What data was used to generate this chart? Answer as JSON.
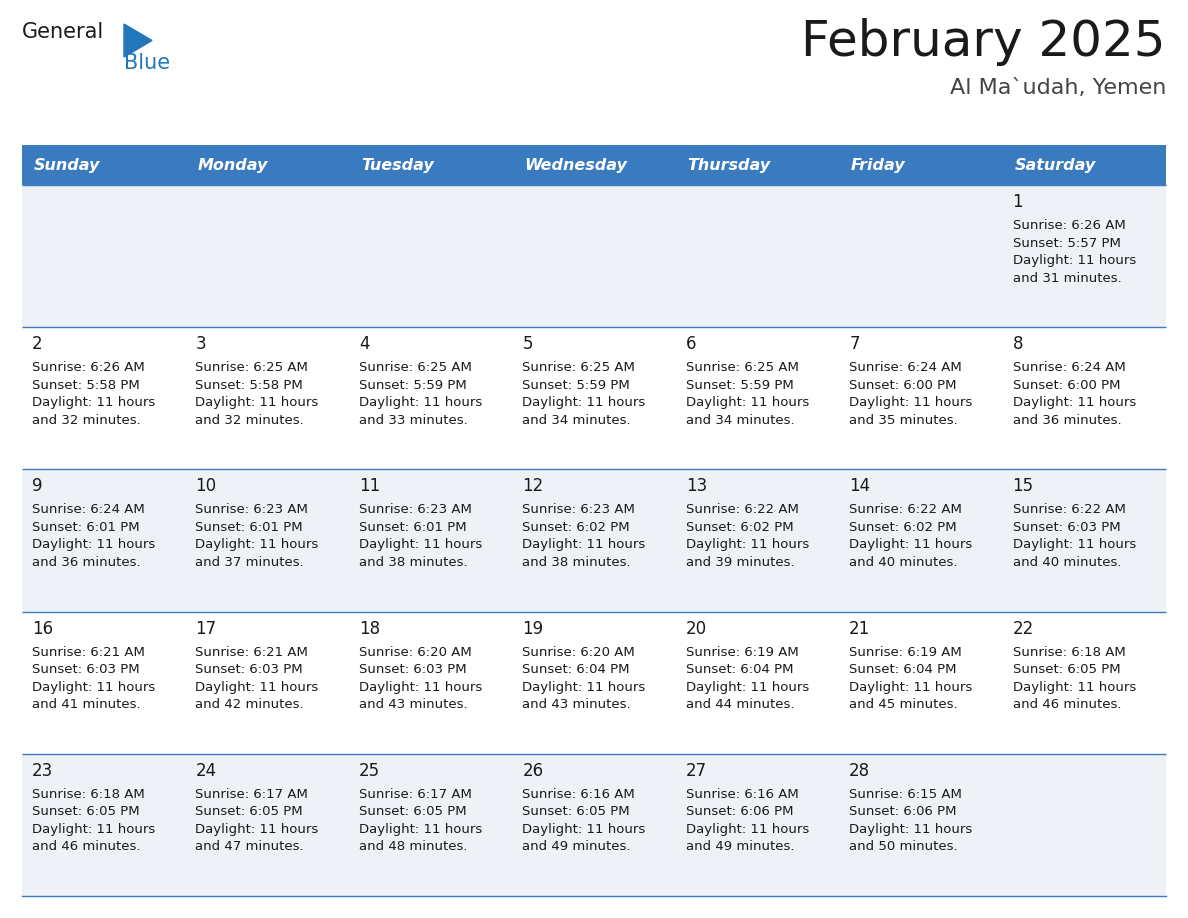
{
  "title": "February 2025",
  "subtitle": "Al Ma`udah, Yemen",
  "header_color": "#3a7bbf",
  "header_text_color": "#ffffff",
  "cell_bg_even": "#eef2f7",
  "cell_bg_odd": "#ffffff",
  "days_of_week": [
    "Sunday",
    "Monday",
    "Tuesday",
    "Wednesday",
    "Thursday",
    "Friday",
    "Saturday"
  ],
  "weeks": [
    [
      {
        "day": null,
        "sunrise": null,
        "sunset": null,
        "daylight": null
      },
      {
        "day": null,
        "sunrise": null,
        "sunset": null,
        "daylight": null
      },
      {
        "day": null,
        "sunrise": null,
        "sunset": null,
        "daylight": null
      },
      {
        "day": null,
        "sunrise": null,
        "sunset": null,
        "daylight": null
      },
      {
        "day": null,
        "sunrise": null,
        "sunset": null,
        "daylight": null
      },
      {
        "day": null,
        "sunrise": null,
        "sunset": null,
        "daylight": null
      },
      {
        "day": 1,
        "sunrise": "6:26 AM",
        "sunset": "5:57 PM",
        "daylight": "11 hours\nand 31 minutes."
      }
    ],
    [
      {
        "day": 2,
        "sunrise": "6:26 AM",
        "sunset": "5:58 PM",
        "daylight": "11 hours\nand 32 minutes."
      },
      {
        "day": 3,
        "sunrise": "6:25 AM",
        "sunset": "5:58 PM",
        "daylight": "11 hours\nand 32 minutes."
      },
      {
        "day": 4,
        "sunrise": "6:25 AM",
        "sunset": "5:59 PM",
        "daylight": "11 hours\nand 33 minutes."
      },
      {
        "day": 5,
        "sunrise": "6:25 AM",
        "sunset": "5:59 PM",
        "daylight": "11 hours\nand 34 minutes."
      },
      {
        "day": 6,
        "sunrise": "6:25 AM",
        "sunset": "5:59 PM",
        "daylight": "11 hours\nand 34 minutes."
      },
      {
        "day": 7,
        "sunrise": "6:24 AM",
        "sunset": "6:00 PM",
        "daylight": "11 hours\nand 35 minutes."
      },
      {
        "day": 8,
        "sunrise": "6:24 AM",
        "sunset": "6:00 PM",
        "daylight": "11 hours\nand 36 minutes."
      }
    ],
    [
      {
        "day": 9,
        "sunrise": "6:24 AM",
        "sunset": "6:01 PM",
        "daylight": "11 hours\nand 36 minutes."
      },
      {
        "day": 10,
        "sunrise": "6:23 AM",
        "sunset": "6:01 PM",
        "daylight": "11 hours\nand 37 minutes."
      },
      {
        "day": 11,
        "sunrise": "6:23 AM",
        "sunset": "6:01 PM",
        "daylight": "11 hours\nand 38 minutes."
      },
      {
        "day": 12,
        "sunrise": "6:23 AM",
        "sunset": "6:02 PM",
        "daylight": "11 hours\nand 38 minutes."
      },
      {
        "day": 13,
        "sunrise": "6:22 AM",
        "sunset": "6:02 PM",
        "daylight": "11 hours\nand 39 minutes."
      },
      {
        "day": 14,
        "sunrise": "6:22 AM",
        "sunset": "6:02 PM",
        "daylight": "11 hours\nand 40 minutes."
      },
      {
        "day": 15,
        "sunrise": "6:22 AM",
        "sunset": "6:03 PM",
        "daylight": "11 hours\nand 40 minutes."
      }
    ],
    [
      {
        "day": 16,
        "sunrise": "6:21 AM",
        "sunset": "6:03 PM",
        "daylight": "11 hours\nand 41 minutes."
      },
      {
        "day": 17,
        "sunrise": "6:21 AM",
        "sunset": "6:03 PM",
        "daylight": "11 hours\nand 42 minutes."
      },
      {
        "day": 18,
        "sunrise": "6:20 AM",
        "sunset": "6:03 PM",
        "daylight": "11 hours\nand 43 minutes."
      },
      {
        "day": 19,
        "sunrise": "6:20 AM",
        "sunset": "6:04 PM",
        "daylight": "11 hours\nand 43 minutes."
      },
      {
        "day": 20,
        "sunrise": "6:19 AM",
        "sunset": "6:04 PM",
        "daylight": "11 hours\nand 44 minutes."
      },
      {
        "day": 21,
        "sunrise": "6:19 AM",
        "sunset": "6:04 PM",
        "daylight": "11 hours\nand 45 minutes."
      },
      {
        "day": 22,
        "sunrise": "6:18 AM",
        "sunset": "6:05 PM",
        "daylight": "11 hours\nand 46 minutes."
      }
    ],
    [
      {
        "day": 23,
        "sunrise": "6:18 AM",
        "sunset": "6:05 PM",
        "daylight": "11 hours\nand 46 minutes."
      },
      {
        "day": 24,
        "sunrise": "6:17 AM",
        "sunset": "6:05 PM",
        "daylight": "11 hours\nand 47 minutes."
      },
      {
        "day": 25,
        "sunrise": "6:17 AM",
        "sunset": "6:05 PM",
        "daylight": "11 hours\nand 48 minutes."
      },
      {
        "day": 26,
        "sunrise": "6:16 AM",
        "sunset": "6:05 PM",
        "daylight": "11 hours\nand 49 minutes."
      },
      {
        "day": 27,
        "sunrise": "6:16 AM",
        "sunset": "6:06 PM",
        "daylight": "11 hours\nand 49 minutes."
      },
      {
        "day": 28,
        "sunrise": "6:15 AM",
        "sunset": "6:06 PM",
        "daylight": "11 hours\nand 50 minutes."
      },
      {
        "day": null,
        "sunrise": null,
        "sunset": null,
        "daylight": null
      }
    ]
  ],
  "logo_general_color": "#1a1a1a",
  "logo_blue_color": "#2277bb",
  "logo_triangle_color": "#2277bb",
  "title_fontsize": 36,
  "subtitle_fontsize": 16,
  "header_fontsize": 11.5,
  "day_number_fontsize": 12,
  "cell_text_fontsize": 9.5
}
